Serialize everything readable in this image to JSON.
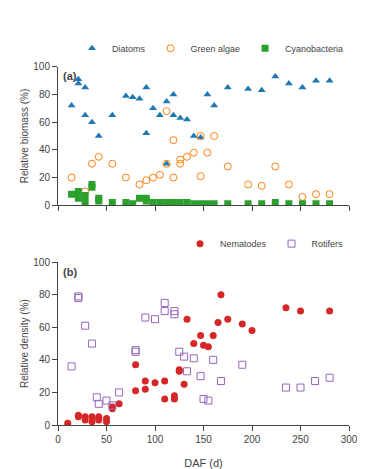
{
  "chart_data": [
    {
      "type": "scatter",
      "ylabel": "Relative biomass (%)",
      "annotations": [
        "(a)"
      ],
      "series": [
        {
          "name": "Diatoms",
          "marker": "triangle-up",
          "x": [
            14,
            21,
            21,
            28,
            28,
            35,
            42,
            56,
            70,
            77,
            84,
            91,
            91,
            98,
            105,
            112,
            112,
            119,
            119,
            126,
            133,
            140,
            147,
            154,
            161,
            175,
            196,
            210,
            224,
            238,
            252,
            266,
            280
          ],
          "values": [
            72,
            88,
            91,
            85,
            65,
            60,
            50,
            65,
            79,
            78,
            77,
            85,
            52,
            70,
            65,
            75,
            30,
            65,
            80,
            63,
            62,
            50,
            49,
            80,
            72,
            85,
            84,
            83,
            93,
            88,
            85,
            90,
            90
          ]
        },
        {
          "name": "Green algae",
          "marker": "circle-open",
          "x": [
            14,
            21,
            28,
            35,
            42,
            56,
            70,
            84,
            91,
            98,
            105,
            112,
            112,
            119,
            119,
            126,
            126,
            133,
            140,
            147,
            147,
            154,
            161,
            175,
            196,
            210,
            224,
            238,
            252,
            266,
            280
          ],
          "values": [
            20,
            8,
            10,
            30,
            35,
            30,
            20,
            15,
            18,
            20,
            22,
            30,
            68,
            20,
            47,
            33,
            30,
            35,
            38,
            50,
            21,
            38,
            50,
            28,
            15,
            14,
            28,
            15,
            6,
            8,
            8
          ]
        },
        {
          "name": "Cyanobacteria",
          "marker": "square",
          "x": [
            14,
            21,
            21,
            28,
            28,
            35,
            35,
            42,
            42,
            56,
            70,
            77,
            84,
            91,
            91,
            98,
            105,
            112,
            119,
            126,
            133,
            140,
            147,
            154,
            161,
            175,
            196,
            210,
            224,
            238,
            252,
            266,
            280
          ],
          "values": [
            8,
            10,
            5,
            7,
            2,
            15,
            13,
            5,
            3,
            2,
            2,
            1,
            5,
            5,
            3,
            2,
            2,
            2,
            2,
            2,
            2,
            1,
            1,
            1,
            1,
            1,
            1,
            1,
            2,
            1,
            1,
            1,
            1
          ]
        }
      ],
      "xlim": [
        0,
        300
      ],
      "xticks": [
        0,
        50,
        100,
        150,
        200,
        250,
        300
      ],
      "ylim": [
        0,
        100
      ],
      "yticks": [
        0,
        20,
        40,
        60,
        80,
        100
      ],
      "tick_labels": "y",
      "grid": false,
      "legend": "upper right"
    },
    {
      "type": "scatter",
      "xlabel": "DAF (d)",
      "ylabel": "Relative density (%)",
      "annotations": [
        "(b)"
      ],
      "series": [
        {
          "name": "Nematodes",
          "marker": "circle",
          "x": [
            10,
            21,
            21,
            28,
            28,
            35,
            35,
            42,
            42,
            42,
            50,
            50,
            56,
            56,
            63,
            80,
            80,
            90,
            90,
            100,
            110,
            110,
            120,
            120,
            125,
            125,
            130,
            133,
            140,
            147,
            150,
            155,
            160,
            165,
            168,
            175,
            190,
            200,
            235,
            250,
            280
          ],
          "values": [
            1,
            5,
            6,
            3,
            5,
            5,
            2,
            5,
            3,
            4,
            2,
            4,
            10,
            11,
            13,
            21,
            37,
            22,
            27,
            26,
            27,
            16,
            16,
            18,
            34,
            33,
            25,
            65,
            50,
            55,
            49,
            48,
            55,
            63,
            80,
            65,
            62,
            58,
            72,
            70,
            70
          ]
        },
        {
          "name": "Rotifers",
          "marker": "square-open",
          "x": [
            14,
            21,
            21,
            28,
            35,
            40,
            42,
            50,
            56,
            63,
            80,
            80,
            90,
            100,
            110,
            110,
            120,
            120,
            125,
            130,
            133,
            140,
            147,
            150,
            155,
            160,
            168,
            190,
            235,
            250,
            265,
            280
          ],
          "values": [
            36,
            78,
            79,
            61,
            50,
            17,
            13,
            15,
            12,
            20,
            45,
            46,
            66,
            65,
            70,
            75,
            68,
            70,
            45,
            42,
            33,
            41,
            30,
            16,
            15,
            40,
            27,
            37,
            23,
            23,
            27,
            29
          ]
        }
      ],
      "xlim": [
        0,
        300
      ],
      "xticks": [
        0,
        50,
        100,
        150,
        200,
        250,
        300
      ],
      "ylim": [
        0,
        100
      ],
      "yticks": [
        0,
        20,
        40,
        60,
        80,
        100
      ],
      "grid": false,
      "legend": "upper right"
    }
  ]
}
